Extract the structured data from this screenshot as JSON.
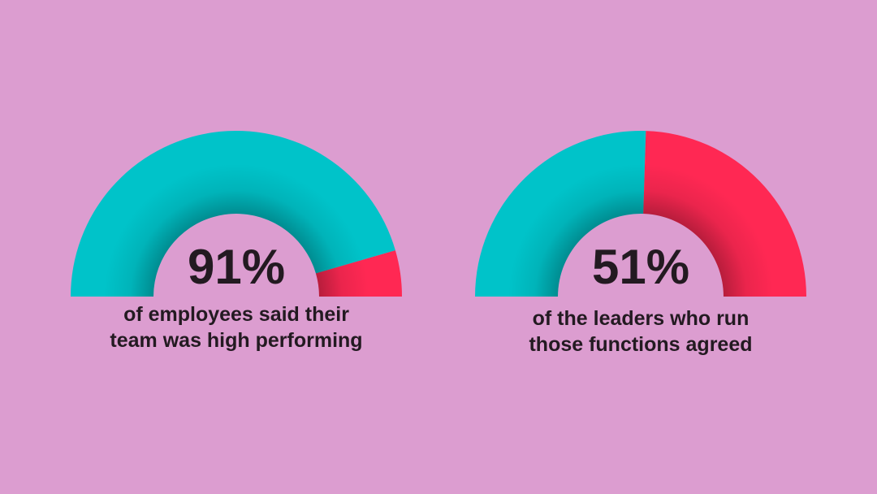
{
  "background_color": "#dc9dd0",
  "colors": {
    "agree": "#00c3c9",
    "remainder": "#ff2853",
    "text": "#231a21"
  },
  "chart_data": [
    {
      "type": "pie",
      "variant": "semi-donut",
      "value": 91,
      "max": 100,
      "label": "91%",
      "caption_lines": [
        "of employees said their",
        "team was high performing"
      ]
    },
    {
      "type": "pie",
      "variant": "semi-donut",
      "value": 51,
      "max": 100,
      "label": "51%",
      "caption_lines": [
        "of the leaders who run",
        "those functions agreed"
      ]
    }
  ]
}
